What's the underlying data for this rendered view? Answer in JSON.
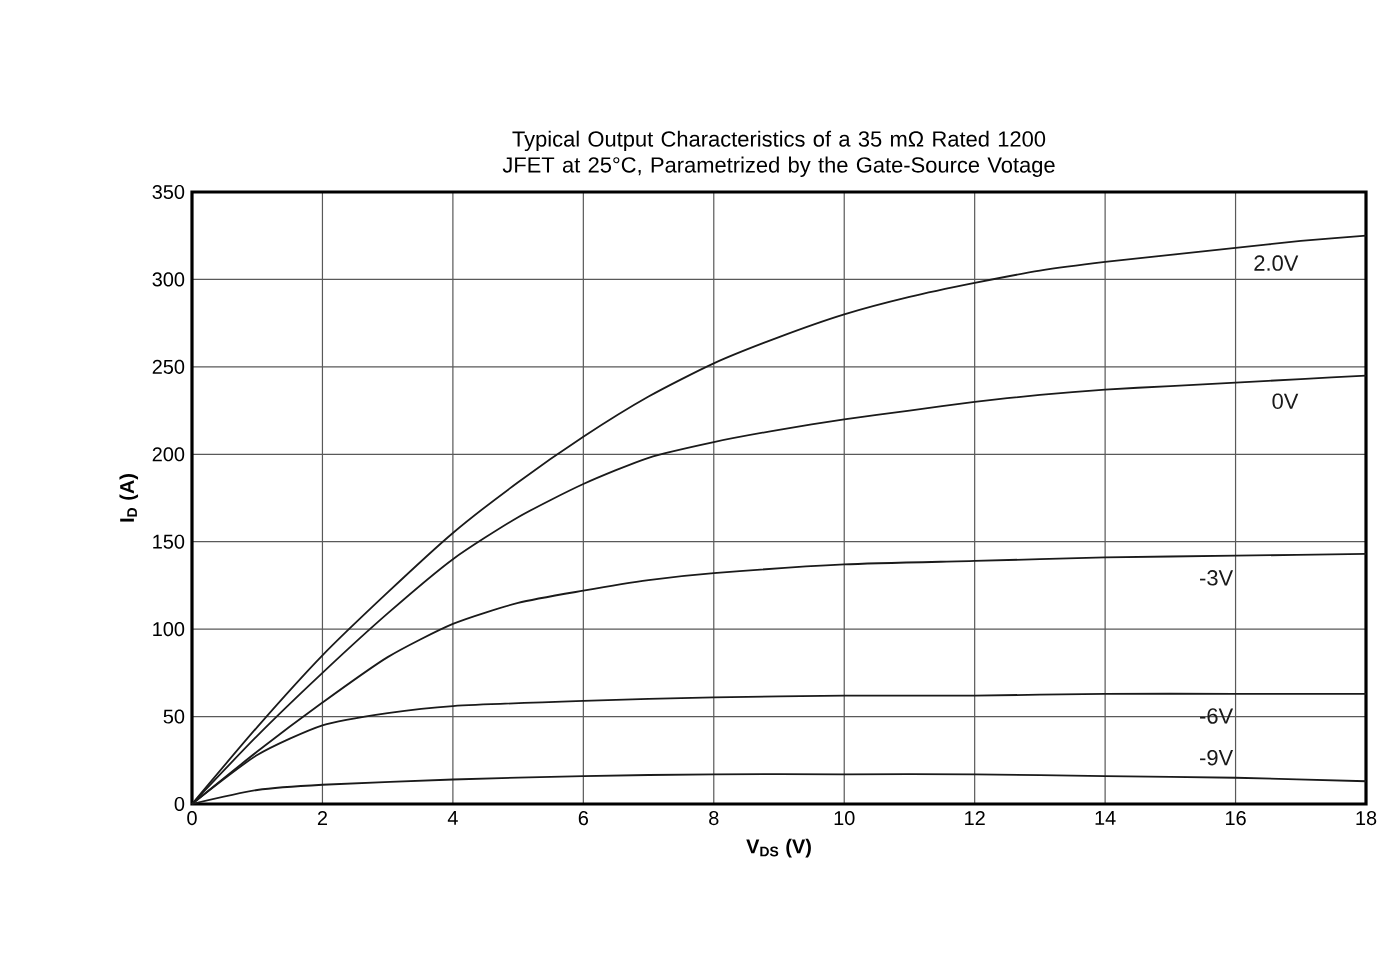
{
  "chart_data": {
    "type": "line",
    "title": "Typical Output Characteristics of a 35 mΩ Rated 1200 JFET at 25°C, Parametrized by the Gate-Source Votage",
    "xlabel": "V$_{DS}$ (V)",
    "ylabel": "I$_{D}$ (A)",
    "xlim": [
      0,
      18
    ],
    "ylim": [
      0,
      350
    ],
    "xticks": [
      0,
      2,
      4,
      6,
      8,
      10,
      12,
      14,
      16,
      18
    ],
    "yticks": [
      0,
      50,
      100,
      150,
      200,
      250,
      300,
      350
    ],
    "grid": true,
    "marker": "none",
    "line_style": "solid",
    "series": [
      {
        "name": "2.0V",
        "color": "#1a1a1a",
        "x": [
          0,
          1,
          2,
          3,
          4,
          5,
          6,
          7,
          8,
          9,
          10,
          11,
          12,
          13,
          14,
          15,
          16,
          17,
          18
        ],
        "values": [
          0,
          44,
          85,
          121,
          155,
          184,
          210,
          233,
          252,
          267,
          280,
          290,
          298,
          305,
          310,
          314,
          318,
          322,
          325
        ]
      },
      {
        "name": "0V",
        "color": "#1a1a1a",
        "x": [
          0,
          1,
          2,
          3,
          4,
          5,
          6,
          7,
          8,
          9,
          10,
          11,
          12,
          13,
          14,
          15,
          16,
          17,
          18
        ],
        "values": [
          0,
          39,
          75,
          109,
          140,
          164,
          183,
          198,
          207,
          214,
          220,
          225,
          230,
          234,
          237,
          239,
          241,
          243,
          245
        ]
      },
      {
        "name": "-3V",
        "color": "#1a1a1a",
        "x": [
          0,
          1,
          2,
          3,
          4,
          5,
          6,
          7,
          8,
          10,
          12,
          14,
          16,
          18
        ],
        "values": [
          0,
          30,
          58,
          84,
          103,
          115,
          122,
          128,
          132,
          137,
          139,
          141,
          142,
          143
        ]
      },
      {
        "name": "-6V",
        "color": "#1a1a1a",
        "x": [
          0,
          1,
          2,
          3,
          4,
          6,
          8,
          10,
          12,
          14,
          16,
          18
        ],
        "values": [
          0,
          28,
          45,
          52,
          56,
          59,
          61,
          62,
          62,
          63,
          63,
          63
        ]
      },
      {
        "name": "-9V",
        "color": "#1a1a1a",
        "x": [
          0,
          1,
          2,
          4,
          6,
          8,
          10,
          12,
          14,
          16,
          18
        ],
        "values": [
          0,
          8,
          11,
          14,
          16,
          17,
          17,
          17,
          16,
          15,
          13
        ]
      }
    ]
  }
}
